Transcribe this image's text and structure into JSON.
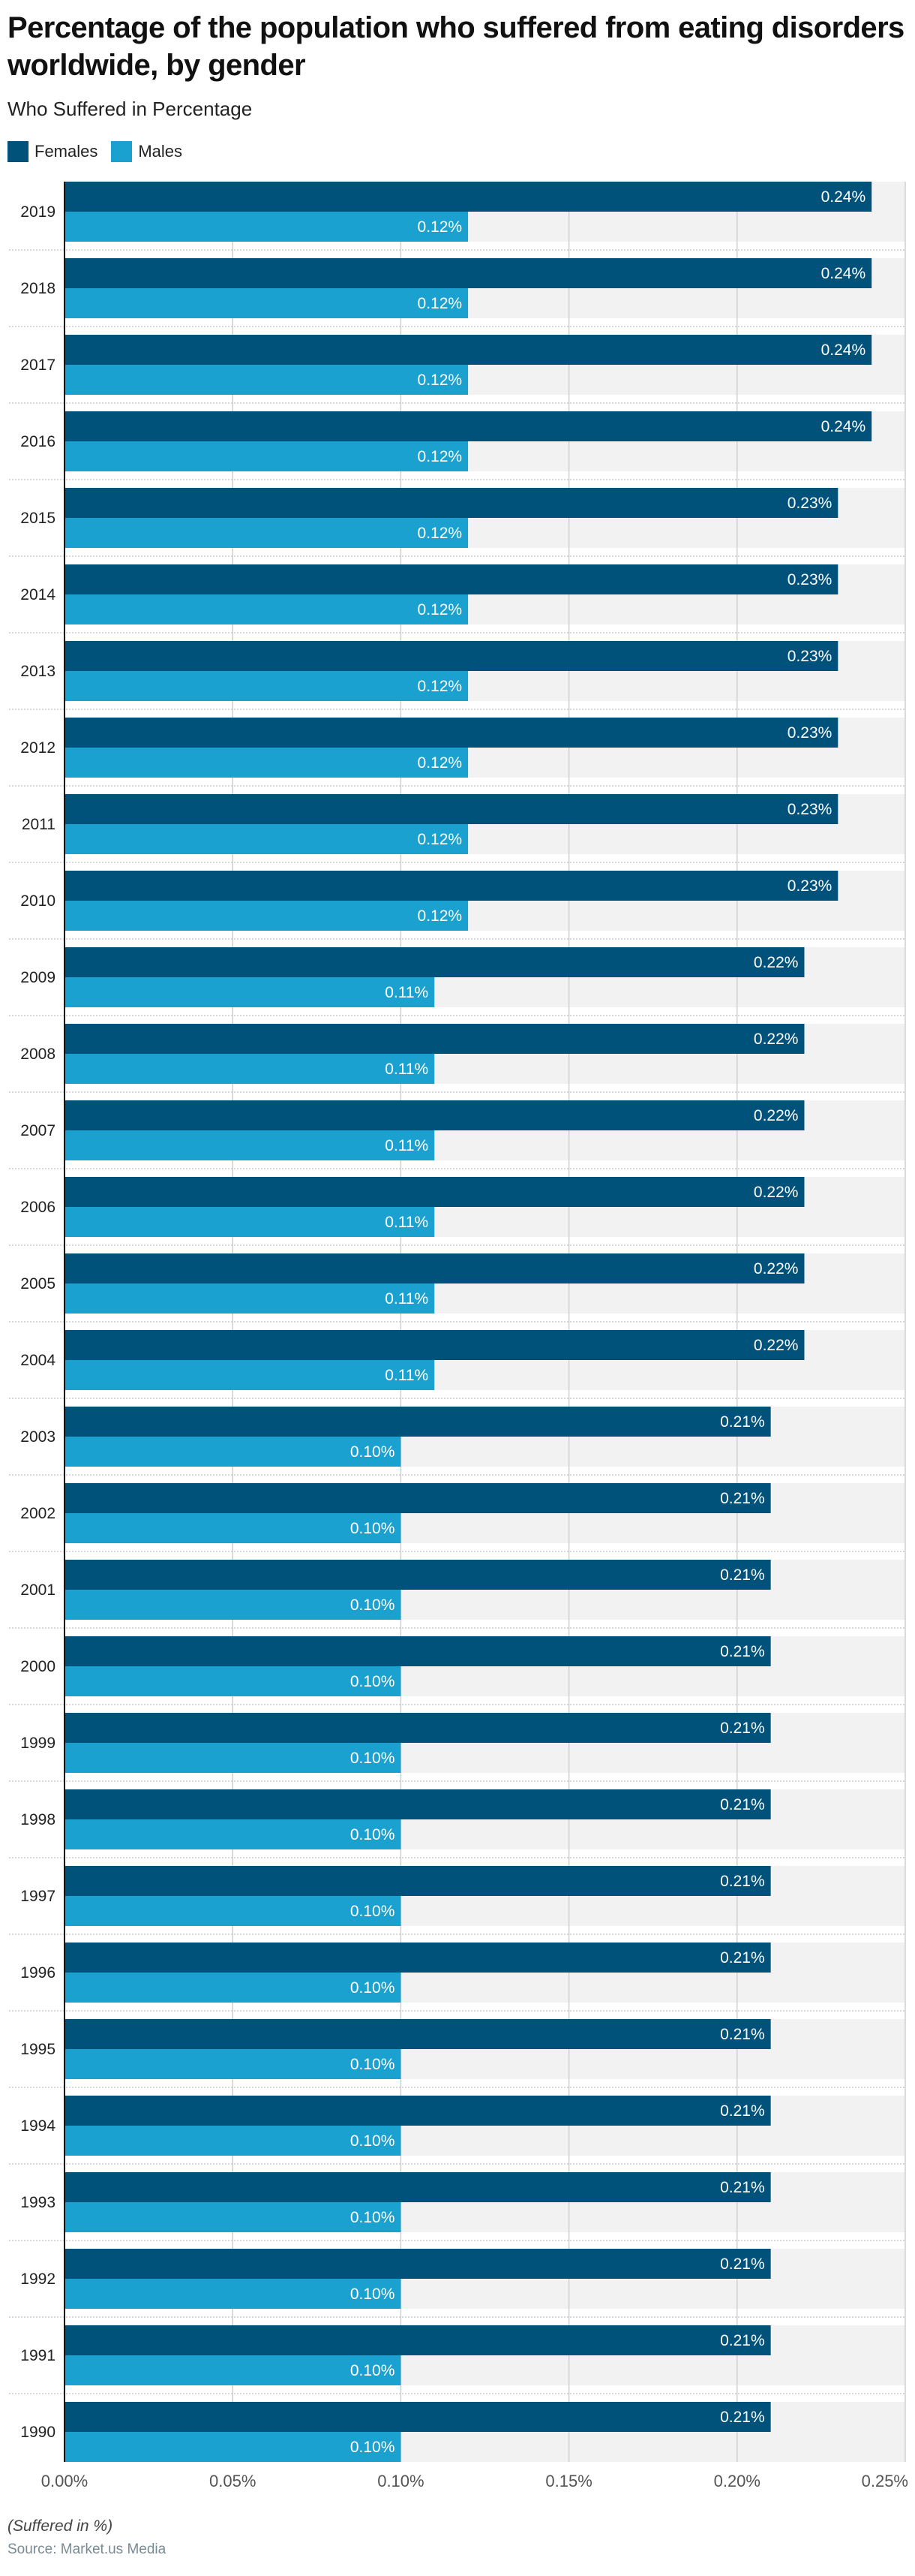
{
  "chart_data": {
    "type": "bar",
    "orientation": "horizontal",
    "title": "Percentage of the population who suffered from eating disorders worldwide, by gender",
    "subtitle": "Who Suffered in Percentage",
    "xlabel": "(Suffered in %)",
    "ylabel": "",
    "xlim": [
      0,
      0.25
    ],
    "x_ticks": [
      "0.00%",
      "0.05%",
      "0.10%",
      "0.15%",
      "0.20%",
      "0.25%"
    ],
    "x_tick_values": [
      0,
      0.05,
      0.1,
      0.15,
      0.2,
      0.25
    ],
    "grid": true,
    "legend_position": "top-left",
    "value_suffix": "%",
    "categories": [
      "2019",
      "2018",
      "2017",
      "2016",
      "2015",
      "2014",
      "2013",
      "2012",
      "2011",
      "2010",
      "2009",
      "2008",
      "2007",
      "2006",
      "2005",
      "2004",
      "2003",
      "2002",
      "2001",
      "2000",
      "1999",
      "1998",
      "1997",
      "1996",
      "1995",
      "1994",
      "1993",
      "1992",
      "1991",
      "1990"
    ],
    "series": [
      {
        "name": "Females",
        "color": "#01527a",
        "values": [
          0.24,
          0.24,
          0.24,
          0.24,
          0.23,
          0.23,
          0.23,
          0.23,
          0.23,
          0.23,
          0.22,
          0.22,
          0.22,
          0.22,
          0.22,
          0.22,
          0.21,
          0.21,
          0.21,
          0.21,
          0.21,
          0.21,
          0.21,
          0.21,
          0.21,
          0.21,
          0.21,
          0.21,
          0.21,
          0.21
        ],
        "labels": [
          "0.24%",
          "0.24%",
          "0.24%",
          "0.24%",
          "0.23%",
          "0.23%",
          "0.23%",
          "0.23%",
          "0.23%",
          "0.23%",
          "0.22%",
          "0.22%",
          "0.22%",
          "0.22%",
          "0.22%",
          "0.22%",
          "0.21%",
          "0.21%",
          "0.21%",
          "0.21%",
          "0.21%",
          "0.21%",
          "0.21%",
          "0.21%",
          "0.21%",
          "0.21%",
          "0.21%",
          "0.21%",
          "0.21%",
          "0.21%"
        ]
      },
      {
        "name": "Males",
        "color": "#1ba1cf",
        "values": [
          0.12,
          0.12,
          0.12,
          0.12,
          0.12,
          0.12,
          0.12,
          0.12,
          0.12,
          0.12,
          0.11,
          0.11,
          0.11,
          0.11,
          0.11,
          0.11,
          0.1,
          0.1,
          0.1,
          0.1,
          0.1,
          0.1,
          0.1,
          0.1,
          0.1,
          0.1,
          0.1,
          0.1,
          0.1,
          0.1
        ],
        "labels": [
          "0.12%",
          "0.12%",
          "0.12%",
          "0.12%",
          "0.12%",
          "0.12%",
          "0.12%",
          "0.12%",
          "0.12%",
          "0.12%",
          "0.11%",
          "0.11%",
          "0.11%",
          "0.11%",
          "0.11%",
          "0.11%",
          "0.10%",
          "0.10%",
          "0.10%",
          "0.10%",
          "0.10%",
          "0.10%",
          "0.10%",
          "0.10%",
          "0.10%",
          "0.10%",
          "0.10%",
          "0.10%",
          "0.10%",
          "0.10%"
        ]
      }
    ]
  },
  "header": {
    "title": "Percentage of the population who suffered from eating disorders worldwide, by gender",
    "subtitle": "Who Suffered in Percentage"
  },
  "legend": {
    "items": [
      {
        "label": "Females",
        "color": "#01527a"
      },
      {
        "label": "Males",
        "color": "#1ba1cf"
      }
    ]
  },
  "footer": {
    "unit_note": "(Suffered in %)",
    "source": "Source: Market.us Media"
  },
  "colors": {
    "plot_band": "#f2f2f2",
    "grid": "#d0d0d0",
    "axis": "#111111",
    "separator": "#cccccc"
  }
}
